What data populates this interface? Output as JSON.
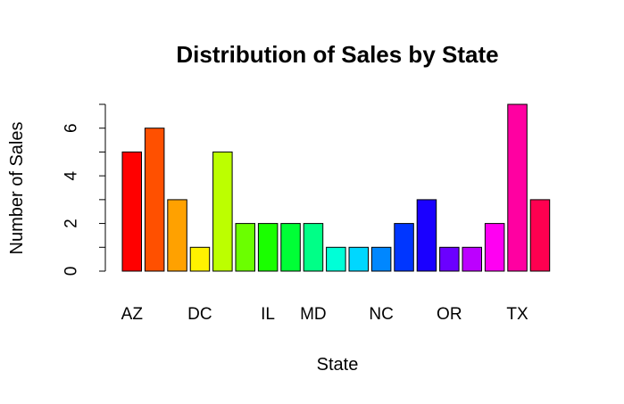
{
  "chart_data": {
    "type": "bar",
    "title": "Distribution of Sales by State",
    "xlabel": "State",
    "ylabel": "Number of Sales",
    "ylim": [
      0,
      7
    ],
    "y_ticks": [
      0,
      2,
      4,
      6
    ],
    "categories": [
      "AZ",
      "",
      "",
      "DC",
      "",
      "",
      "IL",
      "",
      "MD",
      "",
      "",
      "NC",
      "",
      "",
      "OR",
      "",
      "",
      "TX",
      ""
    ],
    "values": [
      5,
      6,
      3,
      1,
      5,
      2,
      2,
      2,
      2,
      1,
      1,
      1,
      2,
      3,
      1,
      1,
      2,
      7,
      3
    ],
    "colors": [
      "#FF0000",
      "#FF5000",
      "#FFA100",
      "#FFF200",
      "#BCFF00",
      "#6BFF00",
      "#1AFF00",
      "#00FF36",
      "#00FF87",
      "#00FFD7",
      "#00D7FF",
      "#0087FF",
      "#0036FF",
      "#1A00FF",
      "#6B00FF",
      "#BC00FF",
      "#FF00F2",
      "#FF00A1",
      "#FF0050"
    ],
    "grid": false,
    "legend": "none"
  }
}
